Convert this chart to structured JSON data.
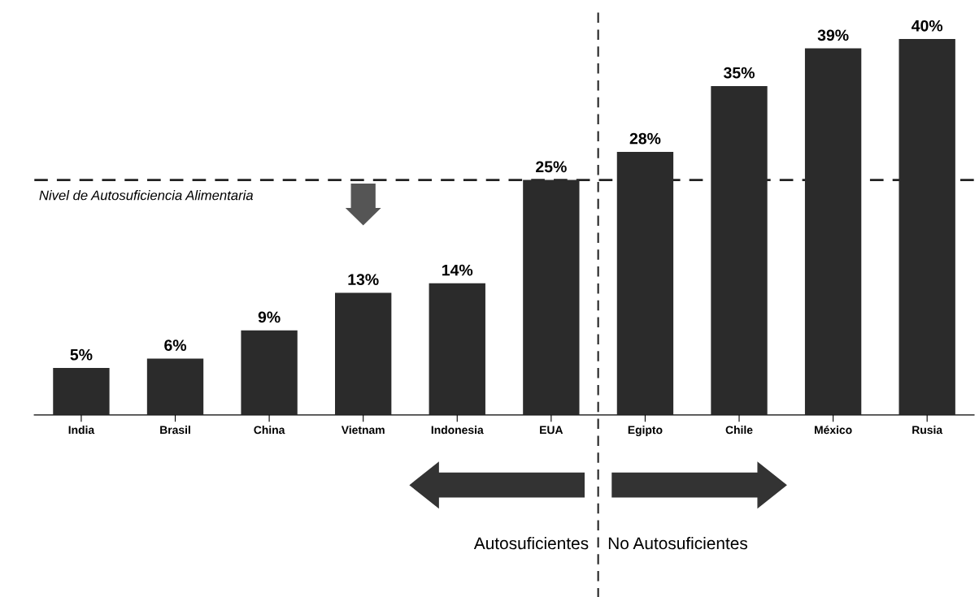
{
  "chart_data": {
    "type": "bar",
    "categories": [
      "India",
      "Brasil",
      "China",
      "Vietnam",
      "Indonesia",
      "EUA",
      "Egipto",
      "Chile",
      "México",
      "Rusia"
    ],
    "values": [
      5,
      6,
      9,
      13,
      14,
      25,
      28,
      35,
      39,
      40
    ],
    "color": "#2b2b2b",
    "value_labels": [
      "5%",
      "6%",
      "9%",
      "13%",
      "14%",
      "25%",
      "28%",
      "35%",
      "39%",
      "40%"
    ],
    "tick_labels": "x",
    "grid": false,
    "ref_lines": [
      {
        "axis": "y",
        "value": 25,
        "label": "Nivel de Autosuficiencia Alimentaria",
        "line_style": "dashed",
        "color": "#222222"
      }
    ],
    "annotations": [
      "Autosuficientes",
      "No Autosuficientes"
    ]
  }
}
